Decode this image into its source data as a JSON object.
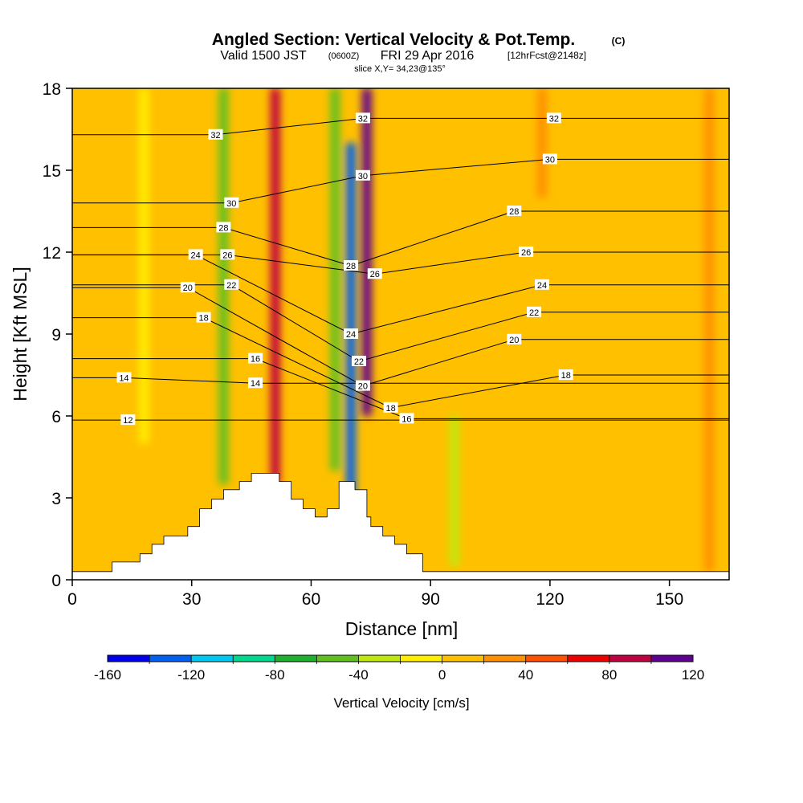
{
  "header": {
    "title": "Angled Section: Vertical Velocity & Pot.Temp.",
    "title_unit": "(C)",
    "valid_prefix": "Valid 1500 JST",
    "valid_utc": "(0600Z)",
    "valid_date": "FRI 29 Apr 2016",
    "forecast": "[12hrFcst@2148z]",
    "slice": "slice X,Y= 34,23@135°"
  },
  "chart_data": {
    "type": "heatmap",
    "xlabel": "Distance [nm]",
    "ylabel": "Height [Kft MSL]",
    "xlim": [
      0,
      165
    ],
    "ylim": [
      0,
      18
    ],
    "xticks": [
      0,
      30,
      60,
      90,
      120,
      150
    ],
    "yticks": [
      0,
      3,
      6,
      9,
      12,
      15,
      18
    ],
    "colorbar": {
      "label": "Vertical Velocity [cm/s]",
      "min": -160,
      "max": 120,
      "step": 20,
      "tick_labels": [
        "-160",
        "-120",
        "-80",
        "-40",
        "0",
        "40",
        "80",
        "120"
      ],
      "colors": [
        "#0000ee",
        "#0060f0",
        "#00c8f0",
        "#00d890",
        "#20b030",
        "#60c020",
        "#c0e810",
        "#ffee00",
        "#ffc000",
        "#ff9000",
        "#ff5000",
        "#ee0000",
        "#c00040",
        "#600090"
      ]
    },
    "velocity_features": [
      {
        "x": 3,
        "y_range": [
          0.3,
          18
        ],
        "value": 10
      },
      {
        "x": 18,
        "y_range": [
          5,
          18
        ],
        "value": -5
      },
      {
        "x": 38,
        "y_range": [
          3.5,
          18
        ],
        "value": -50
      },
      {
        "x": 51,
        "y_range": [
          3.5,
          18
        ],
        "value": 80
      },
      {
        "x": 66,
        "y_range": [
          4,
          18
        ],
        "value": -55
      },
      {
        "x": 70,
        "y_range": [
          3,
          16
        ],
        "value": -140
      },
      {
        "x": 74,
        "y_range": [
          6,
          18
        ],
        "value": 100
      },
      {
        "x": 96,
        "y_range": [
          0.5,
          6
        ],
        "value": -30
      },
      {
        "x": 118,
        "y_range": [
          14,
          18
        ],
        "value": 30
      },
      {
        "x": 160,
        "y_range": [
          0.3,
          18
        ],
        "value": 25
      }
    ],
    "terrain": [
      [
        0,
        0.3
      ],
      [
        10,
        0.3
      ],
      [
        10,
        0.65
      ],
      [
        17,
        0.65
      ],
      [
        17,
        0.95
      ],
      [
        20,
        0.95
      ],
      [
        20,
        1.3
      ],
      [
        23,
        1.3
      ],
      [
        23,
        1.6
      ],
      [
        29,
        1.6
      ],
      [
        29,
        1.95
      ],
      [
        32,
        1.95
      ],
      [
        32,
        2.6
      ],
      [
        35,
        2.6
      ],
      [
        35,
        2.95
      ],
      [
        38,
        2.95
      ],
      [
        38,
        3.3
      ],
      [
        42,
        3.3
      ],
      [
        42,
        3.6
      ],
      [
        45,
        3.6
      ],
      [
        45,
        3.9
      ],
      [
        52,
        3.9
      ],
      [
        52,
        3.6
      ],
      [
        55,
        3.6
      ],
      [
        55,
        2.95
      ],
      [
        58,
        2.95
      ],
      [
        58,
        2.6
      ],
      [
        61,
        2.6
      ],
      [
        61,
        2.3
      ],
      [
        64,
        2.3
      ],
      [
        64,
        2.6
      ],
      [
        67,
        2.6
      ],
      [
        67,
        3.6
      ],
      [
        71,
        3.6
      ],
      [
        71,
        3.3
      ],
      [
        74,
        3.3
      ],
      [
        74,
        2.3
      ],
      [
        75,
        2.3
      ],
      [
        75,
        1.95
      ],
      [
        78,
        1.95
      ],
      [
        78,
        1.6
      ],
      [
        81,
        1.6
      ],
      [
        81,
        1.3
      ],
      [
        84,
        1.3
      ],
      [
        84,
        0.95
      ],
      [
        88,
        0.95
      ],
      [
        88,
        0.3
      ],
      [
        165,
        0.3
      ]
    ],
    "potential_temperature": {
      "levels": [
        12,
        14,
        16,
        18,
        20,
        22,
        24,
        26,
        28,
        30,
        32
      ],
      "labels": [
        {
          "x": 14,
          "y": 5.85,
          "text": "12"
        },
        {
          "x": 13,
          "y": 7.4,
          "text": "14"
        },
        {
          "x": 46,
          "y": 7.2,
          "text": "14"
        },
        {
          "x": 46,
          "y": 8.1,
          "text": "16"
        },
        {
          "x": 84,
          "y": 5.9,
          "text": "16"
        },
        {
          "x": 33,
          "y": 9.6,
          "text": "18"
        },
        {
          "x": 80,
          "y": 6.3,
          "text": "18"
        },
        {
          "x": 124,
          "y": 7.5,
          "text": "18"
        },
        {
          "x": 29,
          "y": 10.7,
          "text": "20"
        },
        {
          "x": 73,
          "y": 7.1,
          "text": "20"
        },
        {
          "x": 111,
          "y": 8.8,
          "text": "20"
        },
        {
          "x": 40,
          "y": 10.8,
          "text": "22"
        },
        {
          "x": 72,
          "y": 8.0,
          "text": "22"
        },
        {
          "x": 116,
          "y": 9.8,
          "text": "22"
        },
        {
          "x": 31,
          "y": 11.9,
          "text": "24"
        },
        {
          "x": 70,
          "y": 9.0,
          "text": "24"
        },
        {
          "x": 118,
          "y": 10.8,
          "text": "24"
        },
        {
          "x": 39,
          "y": 11.9,
          "text": "26"
        },
        {
          "x": 76,
          "y": 11.2,
          "text": "26"
        },
        {
          "x": 114,
          "y": 12.0,
          "text": "26"
        },
        {
          "x": 38,
          "y": 12.9,
          "text": "28"
        },
        {
          "x": 70,
          "y": 11.5,
          "text": "28"
        },
        {
          "x": 111,
          "y": 13.5,
          "text": "28"
        },
        {
          "x": 40,
          "y": 13.8,
          "text": "30"
        },
        {
          "x": 73,
          "y": 14.8,
          "text": "30"
        },
        {
          "x": 120,
          "y": 15.4,
          "text": "30"
        },
        {
          "x": 36,
          "y": 16.3,
          "text": "32"
        },
        {
          "x": 73,
          "y": 16.9,
          "text": "32"
        },
        {
          "x": 121,
          "y": 16.9,
          "text": "32"
        }
      ]
    }
  }
}
